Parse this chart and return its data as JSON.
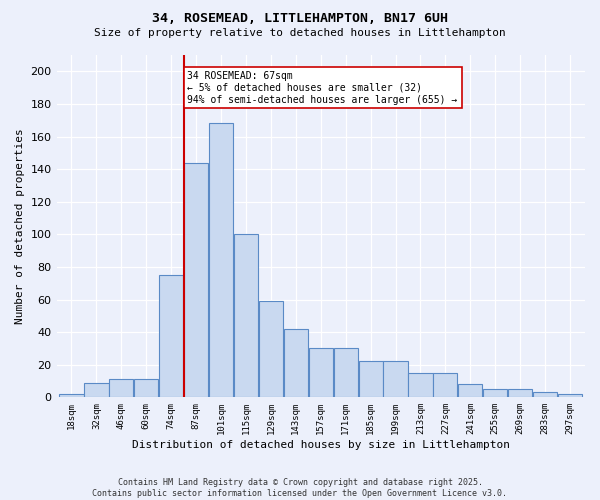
{
  "title1": "34, ROSEMEAD, LITTLEHAMPTON, BN17 6UH",
  "title2": "Size of property relative to detached houses in Littlehampton",
  "xlabel": "Distribution of detached houses by size in Littlehampton",
  "ylabel": "Number of detached properties",
  "categories": [
    "18sqm",
    "32sqm",
    "46sqm",
    "60sqm",
    "74sqm",
    "87sqm",
    "101sqm",
    "115sqm",
    "129sqm",
    "143sqm",
    "157sqm",
    "171sqm",
    "185sqm",
    "199sqm",
    "213sqm",
    "227sqm",
    "241sqm",
    "255sqm",
    "269sqm",
    "283sqm",
    "297sqm"
  ],
  "values": [
    2,
    9,
    11,
    11,
    75,
    144,
    168,
    100,
    59,
    42,
    30,
    30,
    22,
    22,
    15,
    15,
    8,
    5,
    5,
    3,
    2
  ],
  "bar_color": "#c9d9f0",
  "bar_edge_color": "#5a8ac6",
  "vline_x": 4.5,
  "vline_color": "#cc0000",
  "annotation_text": "34 ROSEMEAD: 67sqm\n← 5% of detached houses are smaller (32)\n94% of semi-detached houses are larger (655) →",
  "annotation_box_color": "#ffffff",
  "annotation_box_edge": "#cc0000",
  "ylim": [
    0,
    210
  ],
  "yticks": [
    0,
    20,
    40,
    60,
    80,
    100,
    120,
    140,
    160,
    180,
    200
  ],
  "footer": "Contains HM Land Registry data © Crown copyright and database right 2025.\nContains public sector information licensed under the Open Government Licence v3.0.",
  "background_color": "#ecf0fb"
}
